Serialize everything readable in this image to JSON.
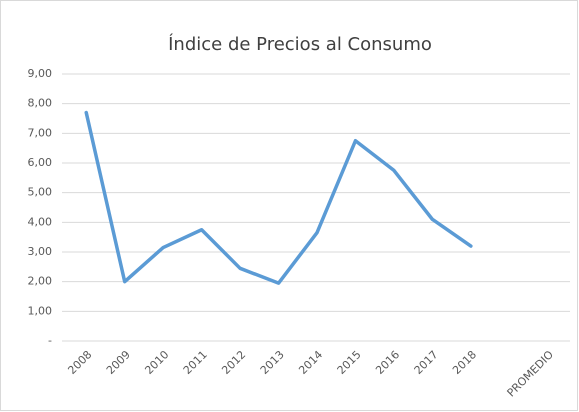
{
  "chart_data": {
    "type": "line",
    "title": "Índice de Precios al Consumo",
    "categories": [
      "2008",
      "2009",
      "2010",
      "2011",
      "2012",
      "2013",
      "2014",
      "2015",
      "2016",
      "2017",
      "2018",
      null,
      "PROMEDIO"
    ],
    "values": [
      7.7,
      2.0,
      3.15,
      3.75,
      2.45,
      1.95,
      3.65,
      6.75,
      5.75,
      4.1,
      3.2,
      null,
      null
    ],
    "color": "#5b9bd5",
    "ylim": [
      0,
      9
    ],
    "yticks": [
      {
        "value": 0,
        "label": "-"
      },
      {
        "value": 1,
        "label": "1,00"
      },
      {
        "value": 2,
        "label": "2,00"
      },
      {
        "value": 3,
        "label": "3,00"
      },
      {
        "value": 4,
        "label": "4,00"
      },
      {
        "value": 5,
        "label": "5,00"
      },
      {
        "value": 6,
        "label": "6,00"
      },
      {
        "value": 7,
        "label": "7,00"
      },
      {
        "value": 8,
        "label": "8,00"
      },
      {
        "value": 9,
        "label": "9,00"
      }
    ],
    "grid": true
  }
}
